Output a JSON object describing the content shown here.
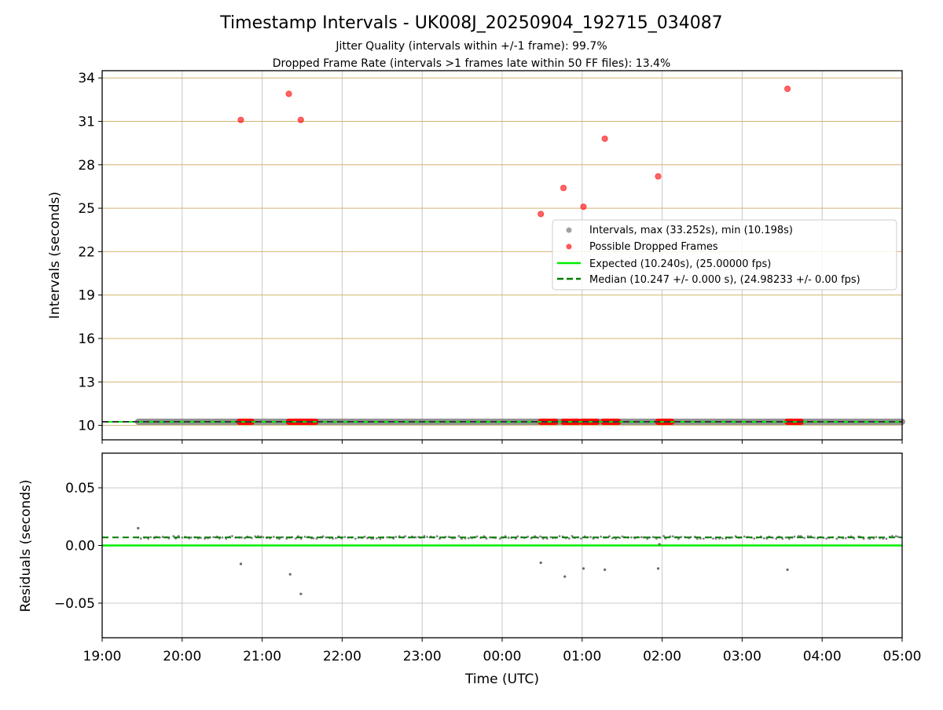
{
  "chart_data": {
    "title": "Timestamp Intervals - UK008J_20250904_192715_034087",
    "subtitle_lines": [
      "Jitter Quality (intervals within +/-1 frame): 99.7%",
      "Dropped Frame Rate (intervals >1 frames late within 50 FF files): 13.4%"
    ],
    "xlabel": "Time (UTC)",
    "x_ticks": [
      "19:00",
      "20:00",
      "21:00",
      "22:00",
      "23:00",
      "00:00",
      "01:00",
      "02:00",
      "03:00",
      "04:00",
      "05:00"
    ],
    "x_range_hours": [
      19.0,
      29.0
    ],
    "colors": {
      "interval_points": "#808080",
      "dropped_points": "#ff0000",
      "expected_line": "#00ee00",
      "median_line": "#007f00",
      "top_gridlines": "#d2b470",
      "gridlines": "#c8c8c8"
    },
    "panels": [
      {
        "type": "scatter",
        "ylabel": "Intervals (seconds)",
        "ylim": [
          9.0,
          34.5
        ],
        "y_ticks": [
          10,
          13,
          16,
          19,
          22,
          25,
          28,
          31,
          34
        ],
        "expected_value": 10.24,
        "median_value": 10.247,
        "interval_band": {
          "x_start": "19:27",
          "x_end": "05:00",
          "value": 10.247
        },
        "dropped_at_baseline": [
          {
            "x_start": "20:43",
            "x_end": "20:52"
          },
          {
            "x_start": "21:20",
            "x_end": "21:40"
          },
          {
            "x_start": "00:29",
            "x_end": "00:40"
          },
          {
            "x_start": "00:46",
            "x_end": "00:57"
          },
          {
            "x_start": "01:00",
            "x_end": "01:11"
          },
          {
            "x_start": "01:16",
            "x_end": "01:27"
          },
          {
            "x_start": "01:57",
            "x_end": "02:07"
          },
          {
            "x_start": "03:34",
            "x_end": "03:44"
          }
        ],
        "dropped_frames": [
          {
            "time": "20:44",
            "value": 31.1
          },
          {
            "time": "21:20",
            "value": 32.9
          },
          {
            "time": "21:29",
            "value": 31.1
          },
          {
            "time": "00:29",
            "value": 24.6
          },
          {
            "time": "00:46",
            "value": 26.4
          },
          {
            "time": "01:01",
            "value": 25.1
          },
          {
            "time": "01:17",
            "value": 29.8
          },
          {
            "time": "01:57",
            "value": 27.2
          },
          {
            "time": "03:34",
            "value": 33.25
          }
        ],
        "legend": {
          "placement": "center-right",
          "entries": [
            {
              "label": "Intervals, max (33.252s), min (10.198s)",
              "kind": "point",
              "color": "#a0a0a0"
            },
            {
              "label": "Possible Dropped Frames",
              "kind": "point",
              "color": "#ff5555"
            },
            {
              "label": "Expected (10.240s), (25.00000 fps)",
              "kind": "line",
              "color": "#00ee00"
            },
            {
              "label": "Median (10.247 +/- 0.000 s), (24.98233 +/- 0.00 fps)",
              "kind": "dashed",
              "color": "#007f00"
            }
          ]
        }
      },
      {
        "type": "scatter",
        "ylabel": "Residuals (seconds)",
        "ylim": [
          -0.08,
          0.08
        ],
        "y_ticks": [
          0.05,
          0.0,
          -0.05
        ],
        "y_tick_labels": [
          "0.05",
          "0.00",
          "−0.05"
        ],
        "expected_value": 0.0,
        "median_value": 0.007,
        "outliers": [
          {
            "time": "19:27",
            "value": 0.015
          },
          {
            "time": "20:44",
            "value": -0.016
          },
          {
            "time": "21:21",
            "value": -0.025
          },
          {
            "time": "21:29",
            "value": -0.042
          },
          {
            "time": "00:29",
            "value": -0.015
          },
          {
            "time": "00:47",
            "value": -0.027
          },
          {
            "time": "01:01",
            "value": -0.02
          },
          {
            "time": "01:17",
            "value": -0.021
          },
          {
            "time": "01:57",
            "value": -0.02
          },
          {
            "time": "01:58",
            "value": 0.001
          },
          {
            "time": "03:34",
            "value": -0.021
          }
        ]
      }
    ]
  }
}
